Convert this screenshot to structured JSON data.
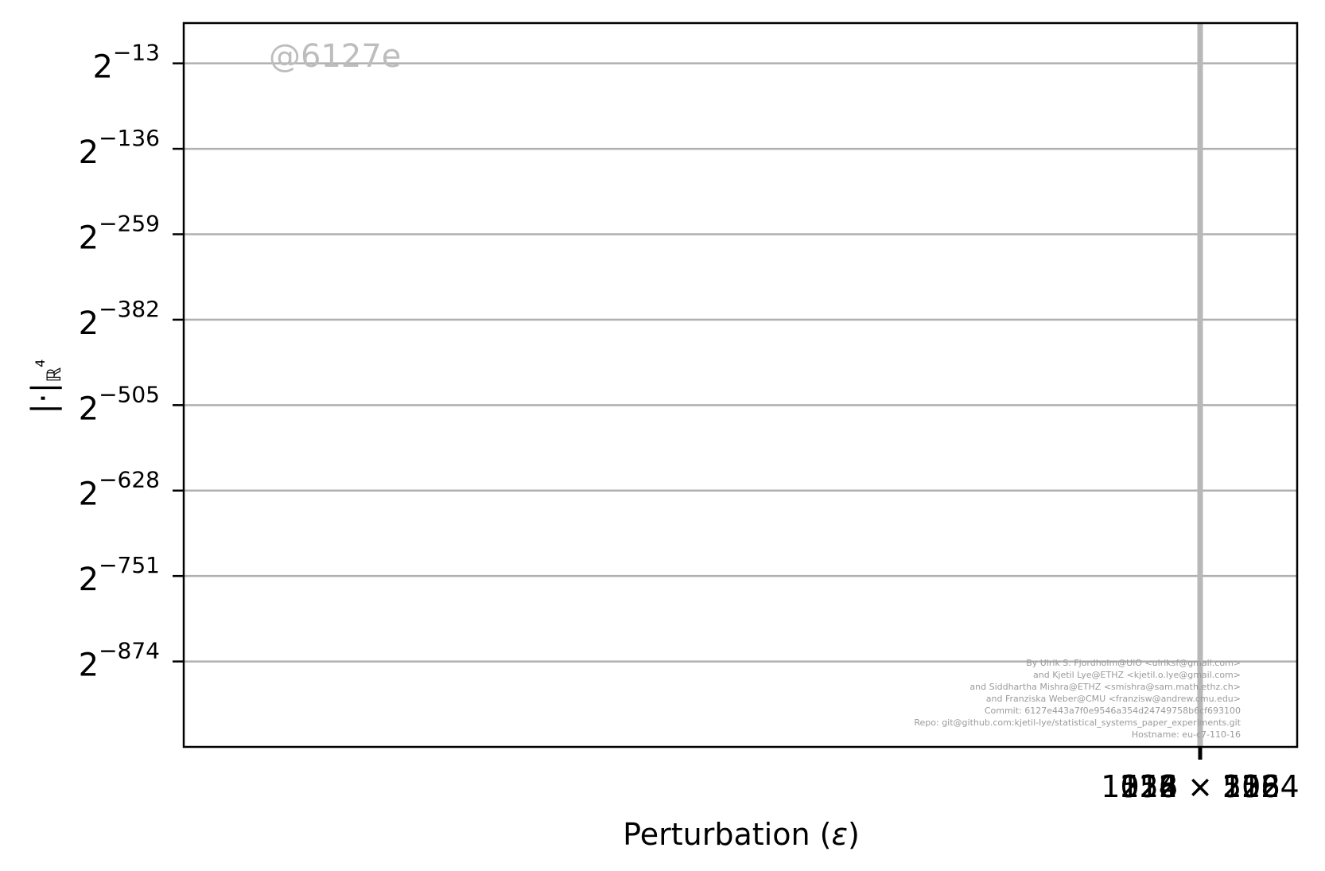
{
  "chart_data": {
    "type": "line",
    "title": "",
    "xlabel": "Perturbation (",
    "xlabel_symbol": "ε",
    "xlabel_close": ")",
    "ylabel": "|·|",
    "ylabel_sub": "ℝ",
    "ylabel_sup": "4",
    "y_scale": "log2",
    "y_ticks": [
      {
        "base": "2",
        "exp": "−13",
        "value": -13
      },
      {
        "base": "2",
        "exp": "−136",
        "value": -136
      },
      {
        "base": "2",
        "exp": "−259",
        "value": -259
      },
      {
        "base": "2",
        "exp": "−382",
        "value": -382
      },
      {
        "base": "2",
        "exp": "−505",
        "value": -505
      },
      {
        "base": "2",
        "exp": "−628",
        "value": -628
      },
      {
        "base": "2",
        "exp": "−751",
        "value": -751
      },
      {
        "base": "2",
        "exp": "−874",
        "value": -874
      }
    ],
    "ylim_exp": [
      -997,
      45
    ],
    "x_ticks_overlapping": [
      "1024 × 1024",
      "512 × 512",
      "256 × 256",
      "128 × 128"
    ],
    "series": [],
    "grid": true,
    "grid_color": "#b0b0b0",
    "vertical_marker_color": "#b8b8b8"
  },
  "watermark": "@6127e",
  "credits": [
    "By Ulrik S. Fjordholm@UiO <ulriksf@gmail.com>",
    "and Kjetil Lye@ETHZ <kjetil.o.lye@gmail.com>",
    "and Siddhartha Mishra@ETHZ <smishra@sam.math.ethz.ch>",
    "and Franziska Weber@CMU <franzisw@andrew.cmu.edu>",
    "Commit: 6127e443a7f0e9546a354d24749758b6cf693100",
    "Repo: git@github.com:kjetil-lye/statistical_systems_paper_experiments.git",
    "Hostname: eu-c7-110-16"
  ]
}
